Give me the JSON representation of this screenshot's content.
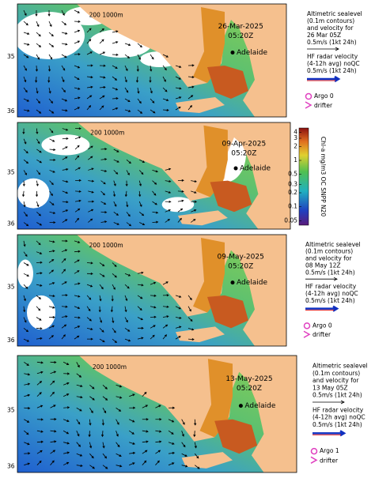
{
  "panels": [
    {
      "date": "26-Mar-2025",
      "time": "05:20Z",
      "depth_label": "200 1000m",
      "place": "Adelaide",
      "lat_labels": [
        "35",
        "36"
      ],
      "legend": {
        "altimetry": [
          "Altimetric sealevel",
          "(0.1m contours)",
          "and velocity for",
          "26 Mar 05Z"
        ],
        "altimetry_scale": "0.5m/s (1kt 24h)",
        "radar": [
          "HF radar velocity",
          "(4-12h avg) noQC"
        ],
        "radar_scale": "0.5m/s (1kt 24h)",
        "argo": "Argo 0",
        "drifter": "drifter"
      }
    },
    {
      "date": "09-Apr-2025",
      "time": "05:20Z",
      "depth_label": "200 1000m",
      "place": "Adelaide",
      "lat_labels": [
        "35",
        "36"
      ],
      "colorbar": {
        "label": "Chl-a mg/m3 OC SNPP N20",
        "ticks": [
          4,
          3,
          2,
          1,
          0.5,
          0.3,
          0.2,
          0.1,
          0.05
        ],
        "lim": [
          0.04,
          5
        ]
      }
    },
    {
      "date": "09-May-2025",
      "time": "05:20Z",
      "depth_label": "200 1000m",
      "place": "Adelaide",
      "lat_labels": [
        "35",
        "36"
      ],
      "legend": {
        "altimetry": [
          "Altimetric sealevel",
          "(0.1m contours)",
          "and velocity for",
          "08 May 12Z"
        ],
        "altimetry_scale": "0.5m/s (1kt 24h)",
        "radar": [
          "HF radar velocity",
          "(4-12h avg) noQC"
        ],
        "radar_scale": "0.5m/s (1kt 24h)",
        "argo": "Argo 0",
        "drifter": "drifter"
      }
    },
    {
      "date": "13-May-2025",
      "time": "05:20Z",
      "depth_label": "200 1000m",
      "place": "Adelaide",
      "lat_labels": [
        "35",
        "36"
      ],
      "legend": {
        "altimetry": [
          "Altimetric sealevel",
          "(0.1m contours)",
          "and velocity for",
          "13 May 05Z"
        ],
        "altimetry_scale": "0.5m/s (1kt 24h)",
        "radar": [
          "HF radar velocity",
          "(4-12h avg) noQC"
        ],
        "radar_scale": "0.5m/s (1kt 24h)",
        "argo": "Argo 1",
        "drifter": "drifter"
      }
    }
  ]
}
